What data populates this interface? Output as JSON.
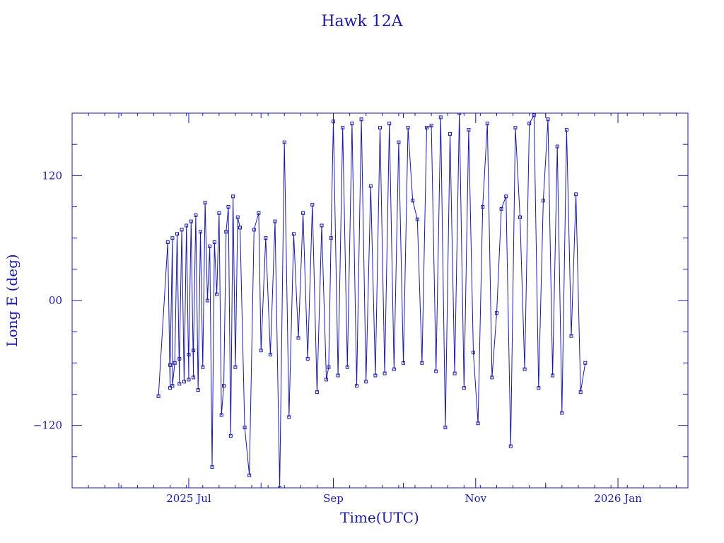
{
  "chart_data": {
    "type": "line",
    "title": "Hawk 12A",
    "xlabel": "Time(UTC)",
    "ylabel": "Long E (deg)",
    "xlim": [
      "2025-05-12",
      "2026-01-31"
    ],
    "ylim": [
      -180,
      180
    ],
    "x_ticks": [
      {
        "date": "2025-07-01",
        "label": "2025 Jul"
      },
      {
        "date": "2025-09-01",
        "label": "Sep"
      },
      {
        "date": "2025-11-01",
        "label": "Nov"
      },
      {
        "date": "2026-01-01",
        "label": "2026 Jan"
      }
    ],
    "y_ticks": [
      {
        "value": -120,
        "label": "−120"
      },
      {
        "value": 0,
        "label": "00"
      },
      {
        "value": 120,
        "label": "120"
      }
    ],
    "grid": false,
    "color": "#1a1aa6",
    "series": [
      {
        "marker": "square",
        "x": [
          "2025-06-18",
          "2025-06-22",
          "2025-06-23",
          "2025-06-23",
          "2025-06-24",
          "2025-06-24",
          "2025-06-25",
          "2025-06-26",
          "2025-06-27",
          "2025-06-27",
          "2025-06-28",
          "2025-06-29",
          "2025-06-30",
          "2025-07-01",
          "2025-07-01",
          "2025-07-02",
          "2025-07-03",
          "2025-07-03",
          "2025-07-04",
          "2025-07-05",
          "2025-07-06",
          "2025-07-07",
          "2025-07-08",
          "2025-07-09",
          "2025-07-10",
          "2025-07-11",
          "2025-07-12",
          "2025-07-13",
          "2025-07-14",
          "2025-07-15",
          "2025-07-16",
          "2025-07-17",
          "2025-07-18",
          "2025-07-19",
          "2025-07-20",
          "2025-07-21",
          "2025-07-22",
          "2025-07-23",
          "2025-07-25",
          "2025-07-27",
          "2025-07-29",
          "2025-07-31",
          "2025-08-01",
          "2025-08-03",
          "2025-08-05",
          "2025-08-07",
          "2025-08-09",
          "2025-08-11",
          "2025-08-13",
          "2025-08-15",
          "2025-08-17",
          "2025-08-19",
          "2025-08-21",
          "2025-08-23",
          "2025-08-25",
          "2025-08-27",
          "2025-08-29",
          "2025-08-30",
          "2025-08-31",
          "2025-09-01",
          "2025-09-03",
          "2025-09-05",
          "2025-09-07",
          "2025-09-09",
          "2025-09-11",
          "2025-09-13",
          "2025-09-15",
          "2025-09-17",
          "2025-09-19",
          "2025-09-21",
          "2025-09-23",
          "2025-09-25",
          "2025-09-27",
          "2025-09-29",
          "2025-10-01",
          "2025-10-03",
          "2025-10-05",
          "2025-10-07",
          "2025-10-09",
          "2025-10-11",
          "2025-10-13",
          "2025-10-15",
          "2025-10-17",
          "2025-10-19",
          "2025-10-21",
          "2025-10-23",
          "2025-10-25",
          "2025-10-27",
          "2025-10-29",
          "2025-10-31",
          "2025-11-02",
          "2025-11-04",
          "2025-11-06",
          "2025-11-08",
          "2025-11-10",
          "2025-11-12",
          "2025-11-14",
          "2025-11-16",
          "2025-11-18",
          "2025-11-20",
          "2025-11-22",
          "2025-11-24",
          "2025-11-26",
          "2025-11-28",
          "2025-11-30",
          "2025-12-02",
          "2025-12-04",
          "2025-12-06",
          "2025-12-08",
          "2025-12-10",
          "2025-12-12",
          "2025-12-14",
          "2025-12-16",
          "2025-12-18"
        ],
        "y": [
          -92,
          56,
          -84,
          -62,
          60,
          -82,
          -60,
          64,
          -80,
          -56,
          68,
          -78,
          72,
          -76,
          -52,
          76,
          -74,
          -48,
          82,
          -86,
          66,
          -64,
          94,
          0,
          52,
          -160,
          56,
          6,
          84,
          -110,
          -82,
          66,
          90,
          -130,
          100,
          -64,
          80,
          70,
          -122,
          -168,
          68,
          84,
          -48,
          60,
          -52,
          76,
          -180,
          152,
          -112,
          64,
          -36,
          84,
          -56,
          92,
          -88,
          72,
          -76,
          -64,
          60,
          172,
          -72,
          166,
          -64,
          170,
          -82,
          174,
          -78,
          110,
          -72,
          166,
          -70,
          170,
          -66,
          152,
          -60,
          166,
          96,
          78,
          -60,
          166,
          168,
          -68,
          176,
          -122,
          160,
          -70,
          180,
          -84,
          164,
          -50,
          -118,
          90,
          170,
          -74,
          -12,
          88,
          100,
          -140,
          166,
          80,
          -66,
          170,
          178,
          -84,
          96,
          174,
          -72,
          148,
          -108,
          164,
          -34,
          102,
          -88,
          -60
        ]
      }
    ]
  }
}
